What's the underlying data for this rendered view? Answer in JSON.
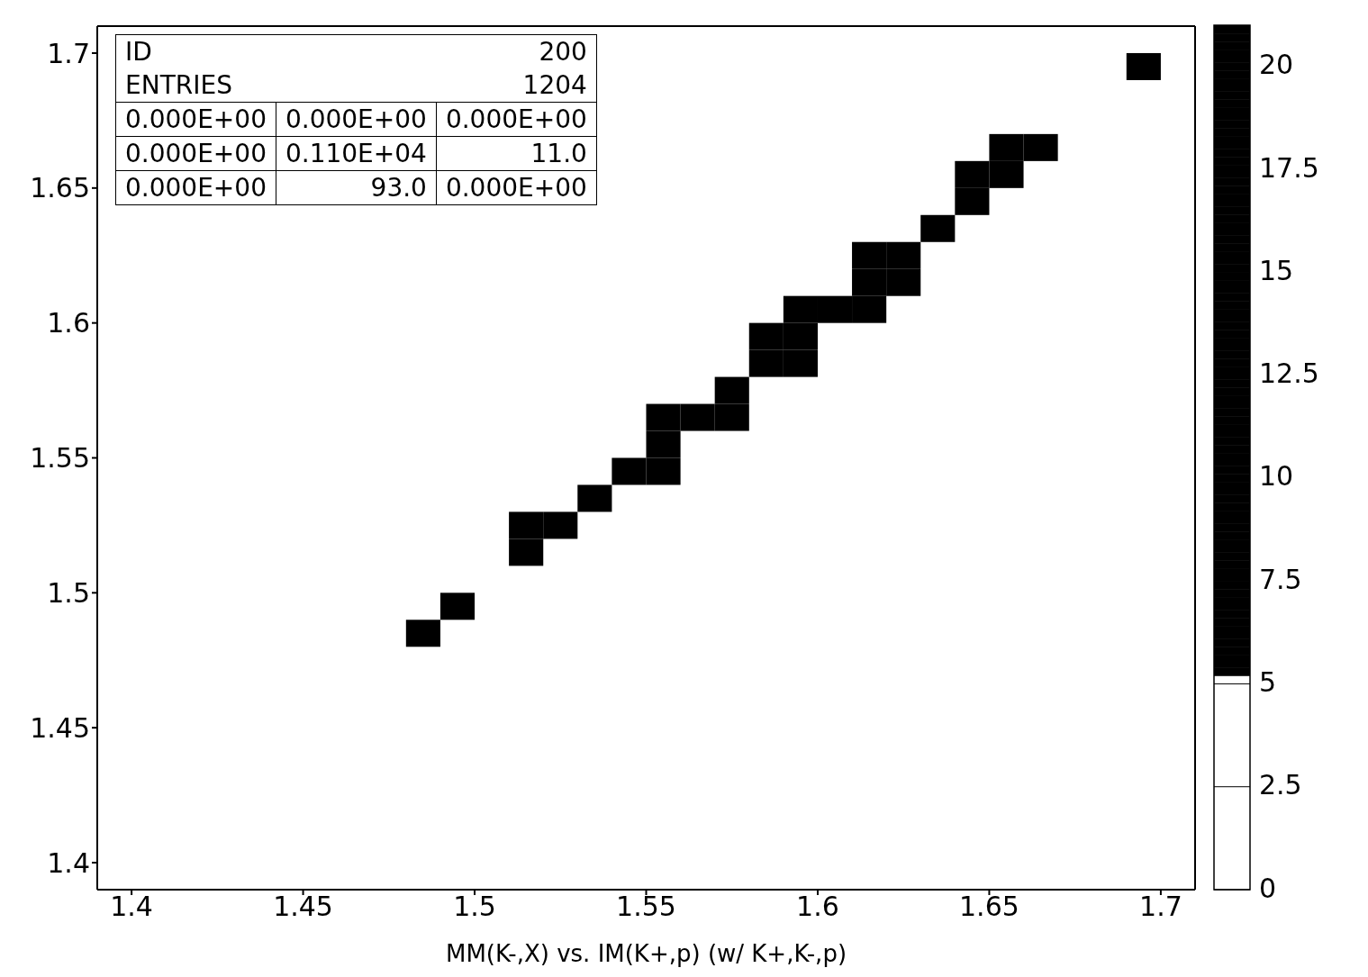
{
  "chart_data": {
    "type": "scatter",
    "xlabel": "MM(K-,X) vs. IM(K+,p) (w/ K+,K-,p)",
    "x": [
      1.485,
      1.495,
      1.515,
      1.515,
      1.525,
      1.535,
      1.545,
      1.555,
      1.555,
      1.555,
      1.565,
      1.575,
      1.575,
      1.585,
      1.585,
      1.595,
      1.595,
      1.595,
      1.605,
      1.615,
      1.615,
      1.615,
      1.625,
      1.625,
      1.635,
      1.645,
      1.645,
      1.655,
      1.655,
      1.665,
      1.695
    ],
    "values": [
      1.485,
      1.495,
      1.515,
      1.525,
      1.525,
      1.535,
      1.545,
      1.545,
      1.555,
      1.565,
      1.565,
      1.565,
      1.575,
      1.585,
      1.595,
      1.585,
      1.595,
      1.605,
      1.605,
      1.605,
      1.615,
      1.625,
      1.615,
      1.625,
      1.635,
      1.645,
      1.655,
      1.655,
      1.665,
      1.665,
      1.695
    ],
    "clim": [
      0,
      21
    ],
    "cticks": [
      0,
      2.5,
      5,
      7.5,
      10,
      12.5,
      15,
      17.5,
      20
    ],
    "xlim": [
      1.39,
      1.71
    ],
    "xticks": [
      1.4,
      1.45,
      1.5,
      1.55,
      1.6,
      1.65,
      1.7
    ],
    "ylim": [
      1.39,
      1.71
    ],
    "yticks": [
      1.4,
      1.45,
      1.5,
      1.55,
      1.6,
      1.65,
      1.7
    ],
    "marker": "square",
    "grid": false,
    "legend": false,
    "annotations": [
      "ID",
      "200",
      "ENTRIES",
      "1204",
      "0.000E+00",
      "0.000E+00",
      "0.000E+00",
      "0.000E+00",
      "0.110E+04",
      "11.0",
      "0.000E+00",
      "93.0",
      "0.000E+00"
    ]
  }
}
